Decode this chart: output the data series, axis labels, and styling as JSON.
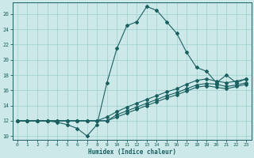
{
  "title": "",
  "xlabel": "Humidex (Indice chaleur)",
  "ylabel": "",
  "xlim": [
    -0.5,
    23.5
  ],
  "ylim": [
    9.5,
    27.5
  ],
  "xticks": [
    0,
    1,
    2,
    3,
    4,
    5,
    6,
    7,
    8,
    9,
    10,
    11,
    12,
    13,
    14,
    15,
    16,
    17,
    18,
    19,
    20,
    21,
    22,
    23
  ],
  "yticks": [
    10,
    12,
    14,
    16,
    18,
    20,
    22,
    24,
    26
  ],
  "bg_color": "#cde8e8",
  "line_color": "#1a6060",
  "grid_color": "#9ecece",
  "main_curve_x": [
    0,
    1,
    2,
    3,
    4,
    5,
    6,
    7,
    8,
    9,
    10,
    11,
    12,
    13,
    14,
    15,
    16,
    17,
    18,
    19,
    20,
    21,
    22,
    23
  ],
  "main_curve_y": [
    12,
    12,
    12,
    12,
    11.8,
    11.5,
    11,
    10,
    11.5,
    17,
    21.5,
    24.5,
    25,
    27,
    26.5,
    25,
    23.5,
    21,
    19,
    18.5,
    17,
    18,
    17,
    17.5
  ],
  "line2_x": [
    0,
    1,
    2,
    3,
    4,
    5,
    6,
    7,
    8,
    9,
    10,
    11,
    12,
    13,
    14,
    15,
    16,
    17,
    18,
    19,
    20,
    21,
    22,
    23
  ],
  "line2_y": [
    12,
    12,
    12,
    12,
    12,
    12,
    12,
    12,
    12,
    12.5,
    13.2,
    13.8,
    14.3,
    14.8,
    15.3,
    15.8,
    16.2,
    16.8,
    17.3,
    17.5,
    17.2,
    17,
    17.2,
    17.5
  ],
  "line3_x": [
    0,
    1,
    2,
    3,
    4,
    5,
    6,
    7,
    8,
    9,
    10,
    11,
    12,
    13,
    14,
    15,
    16,
    17,
    18,
    19,
    20,
    21,
    22,
    23
  ],
  "line3_y": [
    12,
    12,
    12,
    12,
    12,
    12,
    12,
    12,
    12,
    12,
    12.8,
    13.3,
    13.8,
    14.3,
    14.8,
    15.3,
    15.7,
    16.2,
    16.7,
    16.9,
    16.8,
    16.5,
    16.7,
    17.0
  ],
  "line4_x": [
    0,
    1,
    2,
    3,
    4,
    5,
    6,
    7,
    8,
    9,
    10,
    11,
    12,
    13,
    14,
    15,
    16,
    17,
    18,
    19,
    20,
    21,
    22,
    23
  ],
  "line4_y": [
    12,
    12,
    12,
    12,
    12,
    12,
    12,
    12,
    12,
    12,
    12.5,
    13.0,
    13.5,
    14.0,
    14.5,
    15.0,
    15.4,
    15.9,
    16.4,
    16.6,
    16.4,
    16.2,
    16.5,
    16.8
  ]
}
